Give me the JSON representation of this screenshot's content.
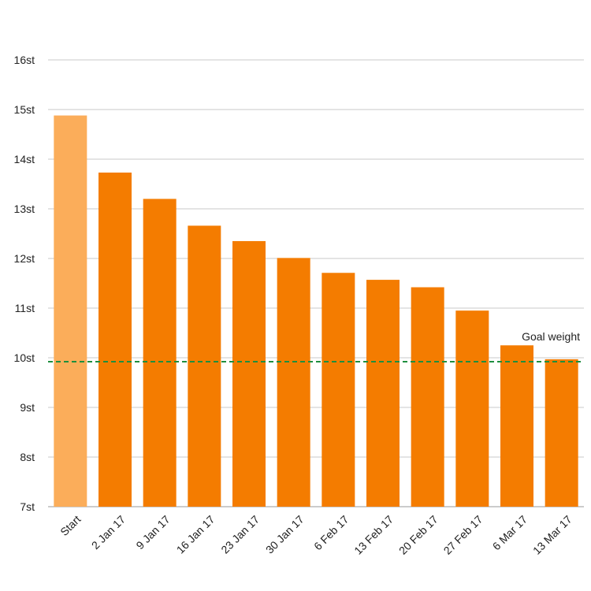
{
  "chart_data": {
    "type": "bar",
    "title": "",
    "xlabel": "",
    "ylabel": "",
    "categories": [
      "Start",
      "2 Jan 17",
      "9 Jan 17",
      "16 Jan 17",
      "23 Jan 17",
      "30 Jan 17",
      "6 Feb 17",
      "13 Feb 17",
      "20 Feb 17",
      "27 Feb 17",
      "6 Mar 17",
      "13 Mar 17"
    ],
    "values": [
      14.88,
      13.73,
      13.2,
      12.66,
      12.35,
      12.01,
      11.71,
      11.57,
      11.42,
      10.95,
      10.25,
      9.97
    ],
    "ylim": [
      7,
      16
    ],
    "yticks": [
      7,
      8,
      9,
      10,
      11,
      12,
      13,
      14,
      15,
      16
    ],
    "ytick_labels": [
      "7st",
      "8st",
      "9st",
      "10st",
      "11st",
      "12st",
      "13st",
      "14st",
      "15st",
      "16st"
    ],
    "grid": true,
    "legend": "none",
    "colors": {
      "start": "#FBAD5A",
      "bars": "#F47C00",
      "goal_line": "#1E8F3E",
      "grid": "#C8C8C8"
    },
    "goal": {
      "value": 9.92,
      "label": "Goal weight"
    }
  }
}
